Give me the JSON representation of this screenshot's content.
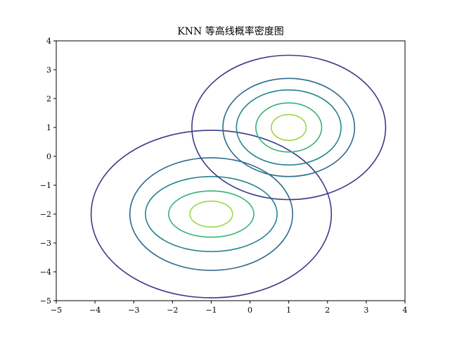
{
  "chart_data": {
    "type": "contour",
    "title": "KNN 等高线概率密度图",
    "xlabel": "",
    "ylabel": "",
    "xlim": [
      -5,
      4
    ],
    "ylim": [
      -5,
      4
    ],
    "xticks": [
      "−5",
      "−4",
      "−3",
      "−2",
      "−1",
      "0",
      "1",
      "2",
      "3",
      "4"
    ],
    "yticks": [
      "−5",
      "−4",
      "−3",
      "−2",
      "−1",
      "0",
      "1",
      "2",
      "3",
      "4"
    ],
    "grid": false,
    "components": [
      {
        "name": "",
        "center": [
          -1,
          -2
        ],
        "levels": [
          {
            "color": "#3b3b8a",
            "rx": 3.1,
            "ry": 2.9
          },
          {
            "color": "#2f6a8c",
            "rx": 2.1,
            "ry": 1.95
          },
          {
            "color": "#25858d",
            "rx": 1.7,
            "ry": 1.3
          },
          {
            "color": "#34b27a",
            "rx": 1.1,
            "ry": 0.8
          },
          {
            "color": "#9ed64a",
            "rx": 0.55,
            "ry": 0.45
          }
        ]
      },
      {
        "name": "",
        "center": [
          1,
          1
        ],
        "levels": [
          {
            "color": "#3b3b8a",
            "rx": 2.5,
            "ry": 2.5
          },
          {
            "color": "#2f6a8c",
            "rx": 1.7,
            "ry": 1.7
          },
          {
            "color": "#25858d",
            "rx": 1.35,
            "ry": 1.3
          },
          {
            "color": "#34b27a",
            "rx": 0.85,
            "ry": 0.85
          },
          {
            "color": "#9ed64a",
            "rx": 0.45,
            "ry": 0.45
          }
        ]
      }
    ]
  }
}
